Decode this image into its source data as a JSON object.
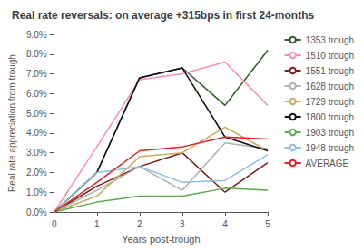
{
  "chart_data": {
    "type": "line",
    "title": "Real rate reversals: on average +315bps in first 24-months",
    "xlabel": "Years post-trough",
    "ylabel": "Real rate appreciation from trough",
    "x": [
      0,
      1,
      2,
      3,
      4,
      5
    ],
    "xlim": [
      0,
      5
    ],
    "xticks": [
      0,
      1,
      2,
      3,
      4,
      5
    ],
    "ylim": [
      0,
      0.09
    ],
    "yticks": [
      {
        "value": 0.0,
        "label": "0.0%"
      },
      {
        "value": 0.01,
        "label": "1.0%"
      },
      {
        "value": 0.02,
        "label": "2.0%"
      },
      {
        "value": 0.03,
        "label": "3.0%"
      },
      {
        "value": 0.04,
        "label": "4.0%"
      },
      {
        "value": 0.05,
        "label": "5.0%"
      },
      {
        "value": 0.06,
        "label": "6.0%"
      },
      {
        "value": 0.07,
        "label": "7.0%"
      },
      {
        "value": 0.08,
        "label": "8.0%"
      },
      {
        "value": 0.09,
        "label": "9.0%"
      }
    ],
    "grid": false,
    "legend": "upper right",
    "series": [
      {
        "name": "1353 trough",
        "color": "#2d5a27",
        "values": [
          0.0,
          0.02,
          0.068,
          0.073,
          0.054,
          0.082
        ]
      },
      {
        "name": "1510 trough",
        "color": "#f48fb1",
        "values": [
          0.0,
          0.033,
          0.067,
          0.07,
          0.076,
          0.054
        ]
      },
      {
        "name": "1551 trough",
        "color": "#7b1c1c",
        "values": [
          0.0,
          0.013,
          0.023,
          0.03,
          0.01,
          0.025
        ]
      },
      {
        "name": "1628 trough",
        "color": "#b0b0b0",
        "values": [
          0.0,
          0.011,
          0.023,
          0.011,
          0.035,
          0.032
        ]
      },
      {
        "name": "1729 trough",
        "color": "#c8aa60",
        "values": [
          0.0,
          0.008,
          0.028,
          0.03,
          0.043,
          0.031
        ]
      },
      {
        "name": "1800 trough",
        "color": "#111111",
        "values": [
          0.0,
          0.02,
          0.068,
          0.073,
          0.038,
          0.031
        ]
      },
      {
        "name": "1903 trough",
        "color": "#5aaa50",
        "values": [
          0.0,
          0.005,
          0.008,
          0.008,
          0.012,
          0.011
        ]
      },
      {
        "name": "1948 trough",
        "color": "#90bedd",
        "values": [
          0.0,
          0.02,
          0.023,
          0.015,
          0.016,
          0.029
        ]
      },
      {
        "name": "AVERAGE",
        "color": "#e02020",
        "values": [
          0.0,
          0.015,
          0.031,
          0.033,
          0.038,
          0.037
        ]
      }
    ]
  }
}
